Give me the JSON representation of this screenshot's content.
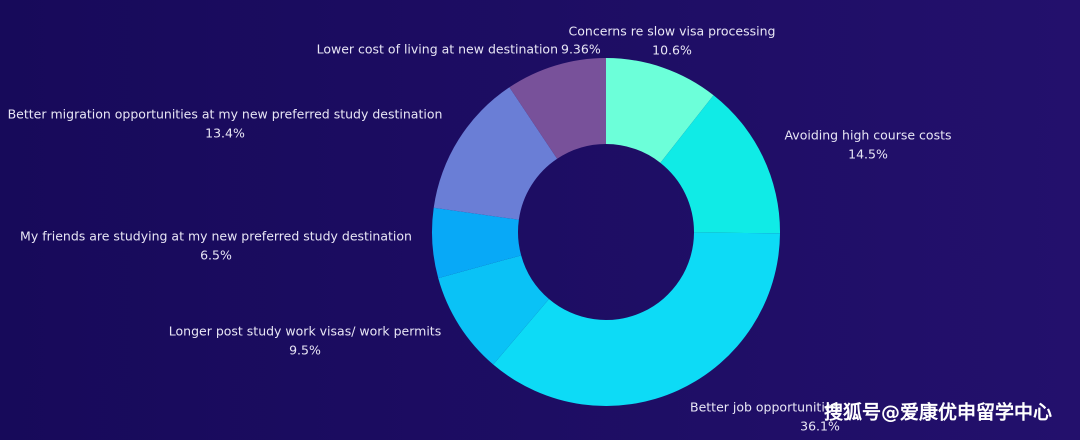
{
  "chart_data": {
    "type": "pie",
    "categories": [
      "Concerns re slow visa processing",
      "Avoiding high course costs",
      "Better job opportunities",
      "Longer post study work visas/ work permits",
      "My friends are studying at my new preferred study destination",
      "Better migration opportunities at my new preferred study destination",
      "Lower cost of living at new destination"
    ],
    "values": [
      10.6,
      14.5,
      36.1,
      9.5,
      6.5,
      13.4,
      9.36
    ],
    "value_labels": [
      "10.6%",
      "14.5%",
      "36.1%",
      "9.5%",
      "6.5%",
      "13.4%",
      "9.36%"
    ],
    "colors": [
      "#6cffd9",
      "#10ebe6",
      "#0ddbf6",
      "#0ac2f6",
      "#08a9f7",
      "#6a7ed6",
      "#78519a"
    ],
    "donut": true
  },
  "watermark": "搜狐号@爱康优申留学中心"
}
